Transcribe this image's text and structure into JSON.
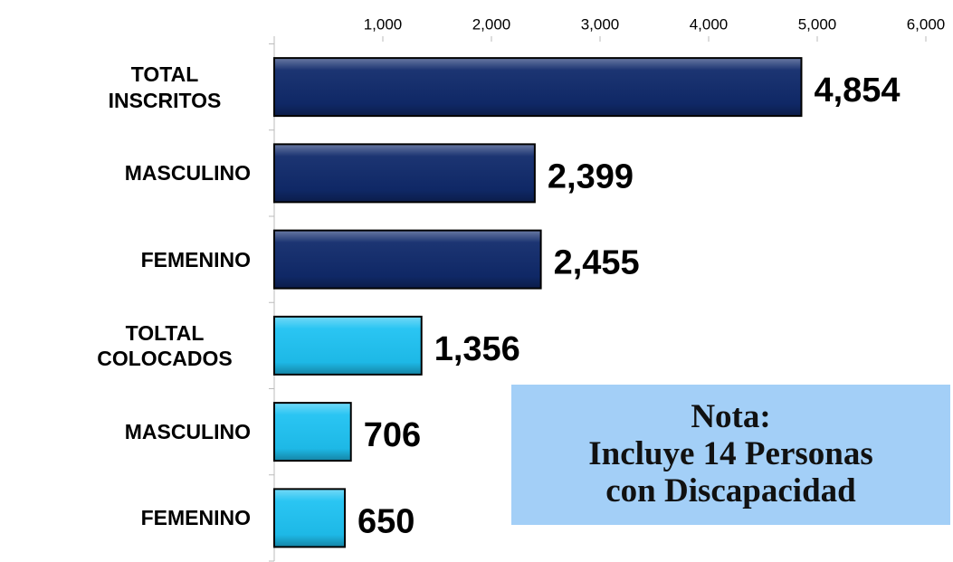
{
  "chart_data": {
    "type": "bar",
    "orientation": "horizontal",
    "categories": [
      "TOTAL INSCRITOS",
      "MASCULINO",
      "FEMENINO",
      "TOLTAL COLOCADOS",
      "MASCULINO",
      "FEMENINO"
    ],
    "values": [
      4854,
      2399,
      2455,
      1356,
      706,
      650
    ],
    "value_labels": [
      "4,854",
      "2,399",
      "2,455",
      "1,356",
      "706",
      "650"
    ],
    "colors": [
      "#102a6b",
      "#102a6b",
      "#102a6b",
      "#1fc2f2",
      "#1fc2f2",
      "#1fc2f2"
    ],
    "xlim": [
      0,
      6000
    ],
    "xticks": [
      {
        "value": 1000,
        "label": "1,000"
      },
      {
        "value": 2000,
        "label": "2,000"
      },
      {
        "value": 3000,
        "label": "3,000"
      },
      {
        "value": 4000,
        "label": "4,000"
      },
      {
        "value": 5000,
        "label": "5,000"
      },
      {
        "value": 6000,
        "label": "6,000"
      }
    ],
    "annotations": [
      "Nota:",
      "Incluye 14 Personas",
      "con Discapacidad"
    ]
  }
}
